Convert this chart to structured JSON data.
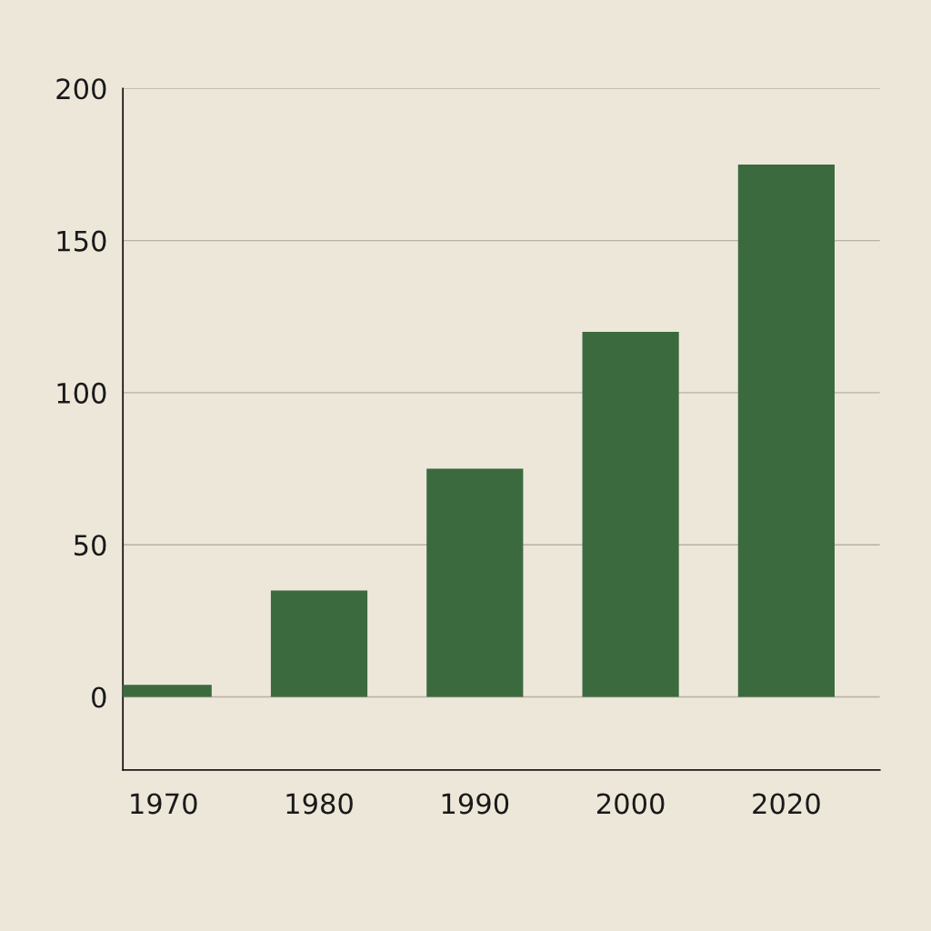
{
  "chart_data": {
    "type": "bar",
    "categories": [
      "1970",
      "1980",
      "1990",
      "2000",
      "2020"
    ],
    "values": [
      4,
      35,
      75,
      120,
      175
    ],
    "color": "#3c6a3f",
    "ylim": [
      -24,
      200
    ],
    "yticks": [
      0,
      50,
      100,
      150,
      200
    ],
    "grid": "y",
    "legend": false
  }
}
